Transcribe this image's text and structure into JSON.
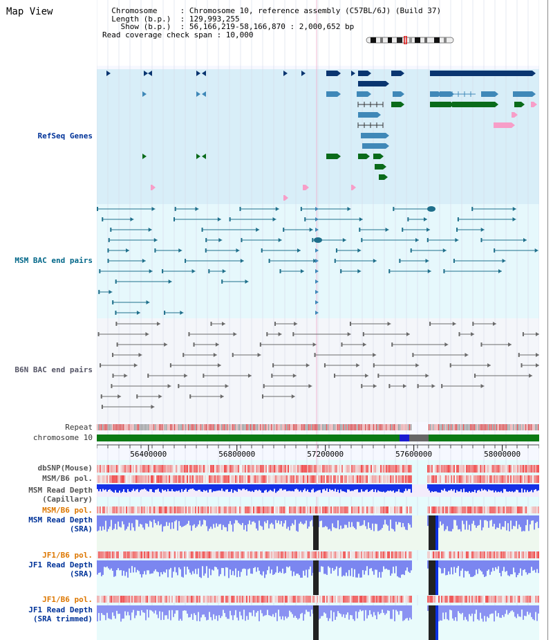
{
  "title": "Map View",
  "info": {
    "lines": [
      "  Chromosome     : Chromosome 10, reference assembly (C57BL/6J) (Build 37)",
      "  Length (b.p.)  : 129,993,255",
      "    Show (b.p.)  : 56,166,219-58,166,870 : 2,000,652 bp",
      "Read coverage check span : 10,000"
    ]
  },
  "tracks": {
    "refseq": "RefSeq Genes",
    "msm_bac": "MSM BAC end pairs",
    "b6n_bac": "B6N BAC end pairs",
    "repeat": "Repeat",
    "chromosome": "chromosome 10",
    "dbsnp": "dbSNP(Mouse)",
    "msm_b6_pol": "MSM/B6 pol.",
    "msm_depth_cap_1": "MSM Read Depth",
    "msm_depth_cap_2": "(Capillary)",
    "msm_b6_pol2": "MSM/B6 pol.",
    "msm_depth_sra_1": "MSM Read Depth",
    "msm_depth_sra_2": "(SRA)",
    "jf1_b6_pol": "JF1/B6 pol.",
    "jf1_depth_sra_1": "JF1 Read Depth",
    "jf1_depth_sra_2": "(SRA)",
    "jf1_b6_pol2": "JF1/B6 pol.",
    "jf1_depth_trim_1": "JF1 Read Depth",
    "jf1_depth_trim_2": "(SRA trimmed)"
  },
  "axis": {
    "ticks": [
      "56400000",
      "56800000",
      "57200000",
      "57600000",
      "58000000"
    ],
    "tick_values": [
      56400000,
      56800000,
      57200000,
      57600000,
      58000000
    ]
  },
  "colors": {
    "refseq_bg": "#d8eef8",
    "msm_bg": "#e6f8fc",
    "b6n_bg": "#f4f6fa",
    "label_blue": "#003399",
    "label_teal": "#006688",
    "label_gray": "#555566",
    "label_orange": "#dd7700",
    "gene_dark": "#0a3570",
    "gene_mid": "#3f88b8",
    "gene_green": "#0a6b1a",
    "gene_pink": "#f79ec8",
    "depth_blue": "#0b2fe0",
    "depth_light": "#7b86f0",
    "chrom_green": "#0b7a14"
  },
  "controls": {}
}
